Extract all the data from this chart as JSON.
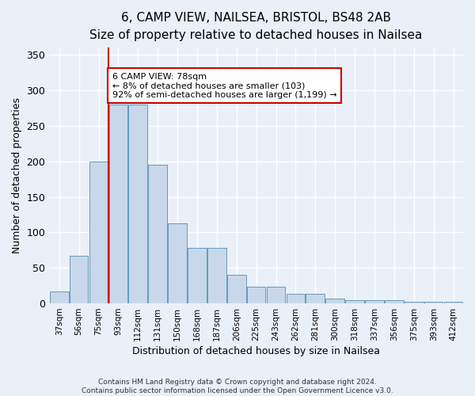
{
  "title1": "6, CAMP VIEW, NAILSEA, BRISTOL, BS48 2AB",
  "title2": "Size of property relative to detached houses in Nailsea",
  "xlabel": "Distribution of detached houses by size in Nailsea",
  "ylabel": "Number of detached properties",
  "bar_labels": [
    "37sqm",
    "56sqm",
    "75sqm",
    "93sqm",
    "112sqm",
    "131sqm",
    "150sqm",
    "168sqm",
    "187sqm",
    "206sqm",
    "225sqm",
    "243sqm",
    "262sqm",
    "281sqm",
    "300sqm",
    "318sqm",
    "337sqm",
    "356sqm",
    "375sqm",
    "393sqm",
    "412sqm"
  ],
  "bar_values": [
    17,
    67,
    200,
    280,
    280,
    195,
    113,
    78,
    78,
    40,
    24,
    24,
    13,
    13,
    7,
    5,
    5,
    5,
    2,
    2,
    2
  ],
  "bar_color": "#c8d8ea",
  "bar_edge_color": "#6699bb",
  "vline_x": 2.5,
  "vline_color": "#cc0000",
  "annotation_text": "6 CAMP VIEW: 78sqm\n← 8% of detached houses are smaller (103)\n92% of semi-detached houses are larger (1,199) →",
  "annotation_box_color": "#ffffff",
  "annotation_box_edge": "#cc0000",
  "ylim": [
    0,
    360
  ],
  "yticks": [
    0,
    50,
    100,
    150,
    200,
    250,
    300,
    350
  ],
  "background_color": "#eaf0f8",
  "plot_bg_color": "#eaf0f8",
  "footer": "Contains HM Land Registry data © Crown copyright and database right 2024.\nContains public sector information licensed under the Open Government Licence v3.0.",
  "grid_color": "#ffffff",
  "title1_fontsize": 11,
  "title2_fontsize": 10,
  "xlabel_fontsize": 9,
  "ylabel_fontsize": 9,
  "annot_fontsize": 8,
  "tick_fontsize": 7.5
}
